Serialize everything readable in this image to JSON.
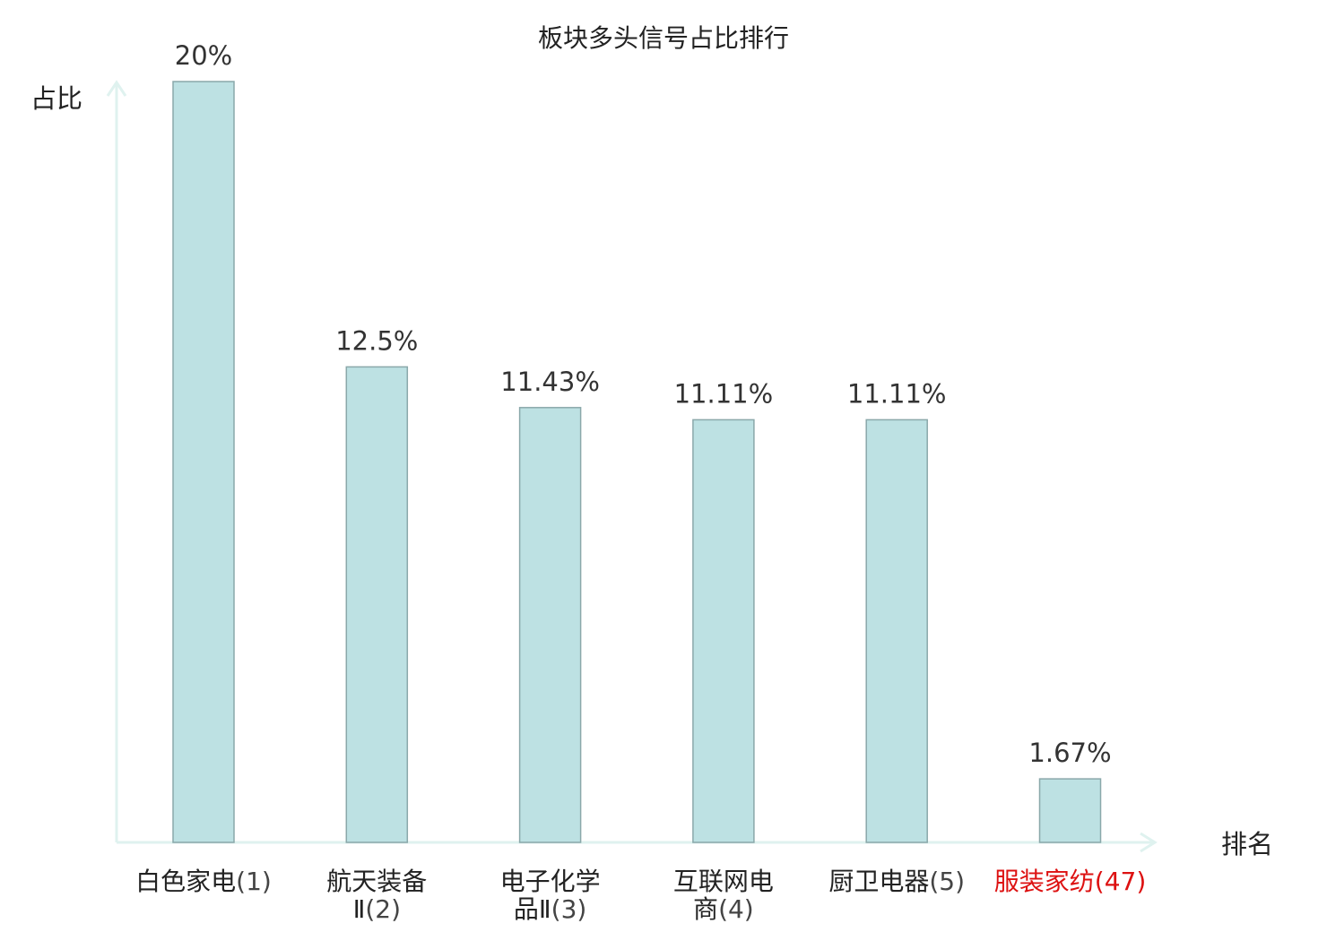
{
  "chart_data": {
    "type": "bar",
    "title": "板块多头信号占比排行",
    "ylabel": "占比",
    "xlabel": "排名",
    "ylim": [
      0,
      20
    ],
    "grid": false,
    "legend": "none",
    "categories": [
      {
        "lines": [
          {
            "name": "白色家电",
            "rank": "(1)"
          }
        ],
        "highlight": false
      },
      {
        "lines": [
          {
            "name": "航天装备",
            "rank": ""
          },
          {
            "name": "Ⅱ",
            "rank": "(2)"
          }
        ],
        "highlight": false
      },
      {
        "lines": [
          {
            "name": "电子化学",
            "rank": ""
          },
          {
            "name": "品Ⅱ",
            "rank": "(3)"
          }
        ],
        "highlight": false
      },
      {
        "lines": [
          {
            "name": "互联网电",
            "rank": ""
          },
          {
            "name": "商",
            "rank": "(4)"
          }
        ],
        "highlight": false
      },
      {
        "lines": [
          {
            "name": "厨卫电器",
            "rank": "(5)"
          }
        ],
        "highlight": false
      },
      {
        "lines": [
          {
            "name": "服装家纺",
            "rank": "(47)"
          }
        ],
        "highlight": true
      }
    ],
    "values": [
      20,
      12.5,
      11.43,
      11.11,
      11.11,
      1.67
    ],
    "value_labels": [
      "20%",
      "12.5%",
      "11.43%",
      "11.11%",
      "11.11%",
      "1.67%"
    ],
    "colors": {
      "bar_fill": "#bde1e3",
      "bar_stroke": "#8aa8aa",
      "axis": "#dff2ef",
      "highlight_text": "#dd1111",
      "text": "#222222"
    }
  }
}
